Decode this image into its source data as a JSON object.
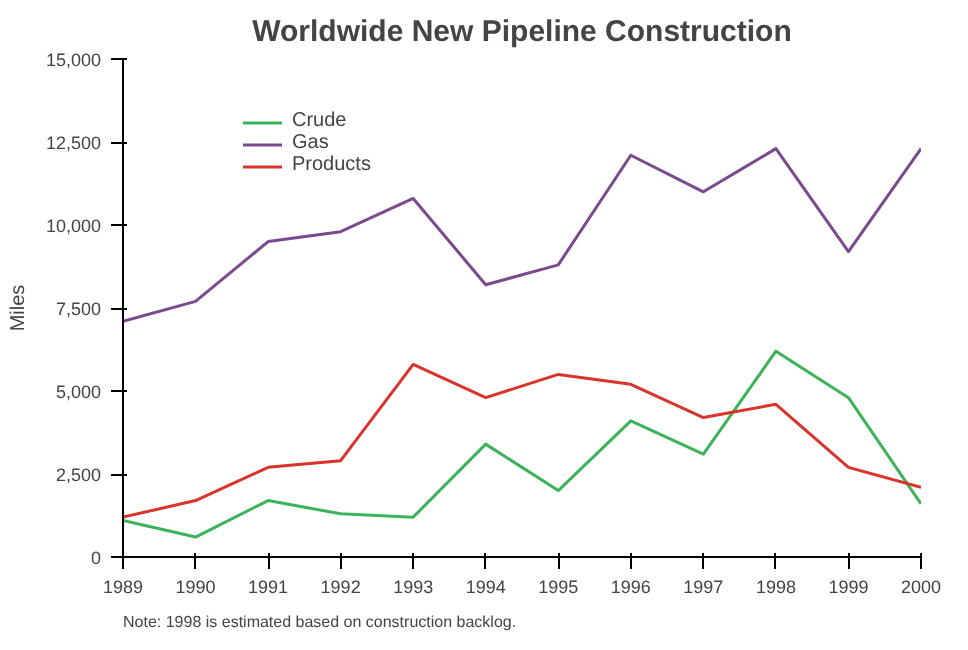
{
  "chart_data": {
    "type": "line",
    "title": "Worldwide New Pipeline Construction",
    "ylabel": "Miles",
    "x": [
      1989,
      1990,
      1991,
      1992,
      1993,
      1994,
      1995,
      1996,
      1997,
      1998,
      1999,
      2000
    ],
    "series": [
      {
        "name": "Crude",
        "color": "#3cb35a",
        "values": [
          1100,
          600,
          1700,
          1300,
          1200,
          3400,
          2000,
          4100,
          3100,
          6200,
          4800,
          1600
        ]
      },
      {
        "name": "Gas",
        "color": "#7a4a8e",
        "values": [
          7100,
          7700,
          9500,
          9800,
          10800,
          8200,
          8800,
          12100,
          11000,
          12300,
          9200,
          12300
        ]
      },
      {
        "name": "Products",
        "color": "#d9342b",
        "values": [
          1200,
          1700,
          2700,
          2900,
          5800,
          4800,
          5500,
          5200,
          4200,
          4600,
          2700,
          2100
        ]
      }
    ],
    "xlim": [
      1989,
      2000
    ],
    "xticks": [
      1989,
      1990,
      1991,
      1992,
      1993,
      1994,
      1995,
      1996,
      1997,
      1998,
      1999,
      2000
    ],
    "ylim": [
      0,
      15000
    ],
    "yticks": [
      0,
      {
        "value": 2500,
        "label": "2,500"
      },
      {
        "value": 5000,
        "label": "5,000"
      },
      {
        "value": 7500,
        "label": "7,500"
      },
      {
        "value": 10000,
        "label": "10,000"
      },
      {
        "value": 12500,
        "label": "12,500"
      },
      {
        "value": 15000,
        "label": "15,000"
      }
    ],
    "grid": false,
    "legend": "top left",
    "marker": "none",
    "line_style": "solid",
    "annotations": [
      "Note:  1998 is estimated based on construction backlog."
    ]
  }
}
